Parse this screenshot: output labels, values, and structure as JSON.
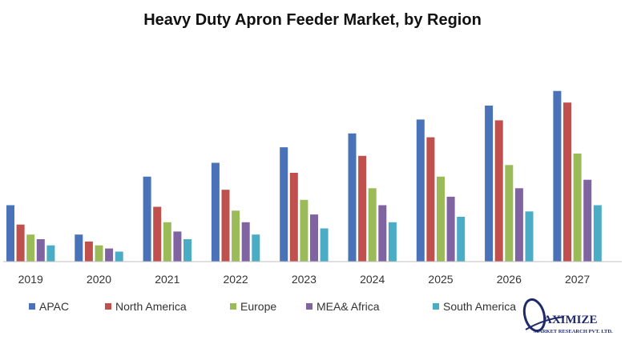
{
  "chart_data": {
    "type": "bar",
    "title": "Heavy Duty Apron Feeder Market, by Region",
    "categories": [
      "2019",
      "2020",
      "2021",
      "2022",
      "2023",
      "2024",
      "2025",
      "2026",
      "2027"
    ],
    "series": [
      {
        "name": "APAC",
        "color": "#4a72b8",
        "values": [
          73,
          35,
          110,
          128,
          148,
          166,
          184,
          202,
          221
        ]
      },
      {
        "name": "North America",
        "color": "#c0504d",
        "values": [
          48,
          26,
          71,
          93,
          115,
          137,
          161,
          183,
          206
        ]
      },
      {
        "name": "Europe",
        "color": "#9bbb59",
        "values": [
          35,
          21,
          51,
          66,
          80,
          95,
          110,
          125,
          140
        ]
      },
      {
        "name": "MEA& Africa",
        "color": "#8064a2",
        "values": [
          29,
          17,
          39,
          51,
          61,
          73,
          84,
          95,
          106
        ]
      },
      {
        "name": "South America",
        "color": "#4bacc6",
        "values": [
          21,
          13,
          29,
          35,
          43,
          51,
          58,
          65,
          73
        ]
      }
    ],
    "ylim": [
      0,
      230
    ],
    "xlabel": "",
    "ylabel": "",
    "grid": false,
    "legend": "bottom"
  },
  "logo": {
    "title": "AXIMIZE",
    "subtitle": "MARKET RESEARCH PVT. LTD."
  }
}
